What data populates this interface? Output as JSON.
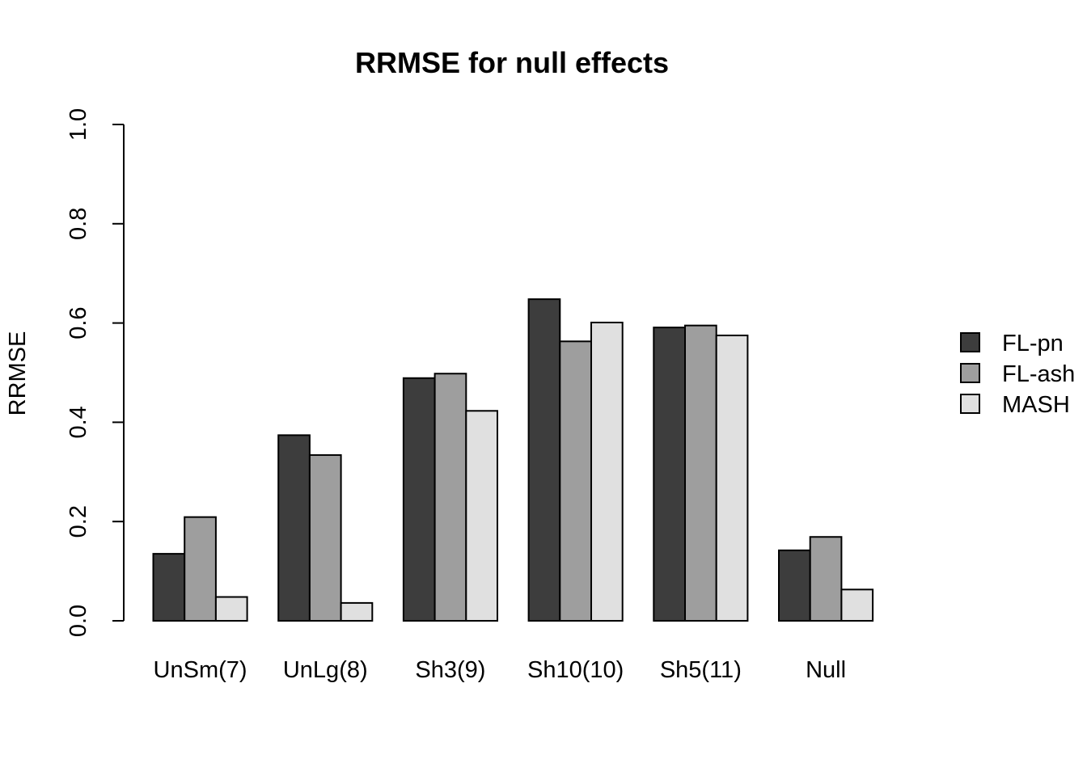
{
  "chart_data": {
    "type": "bar",
    "title": "RRMSE for null effects",
    "xlabel": "",
    "ylabel": "RRMSE",
    "ylim": [
      0,
      1
    ],
    "yticks": [
      0.0,
      0.2,
      0.4,
      0.6,
      0.8,
      1.0
    ],
    "ytick_labels": [
      "0.0",
      "0.2",
      "0.4",
      "0.6",
      "0.8",
      "1.0"
    ],
    "categories": [
      "UnSm(7)",
      "UnLg(8)",
      "Sh3(9)",
      "Sh10(10)",
      "Sh5(11)",
      "Null"
    ],
    "series": [
      {
        "name": "FL-pn",
        "color": "#3d3d3d",
        "values": [
          0.135,
          0.374,
          0.489,
          0.648,
          0.591,
          0.142
        ]
      },
      {
        "name": "FL-ash",
        "color": "#9e9e9e",
        "values": [
          0.209,
          0.334,
          0.498,
          0.563,
          0.595,
          0.169
        ]
      },
      {
        "name": "MASH",
        "color": "#e0e0e0",
        "values": [
          0.048,
          0.036,
          0.423,
          0.601,
          0.575,
          0.063
        ]
      }
    ],
    "grid": false,
    "legend_position": "right"
  }
}
